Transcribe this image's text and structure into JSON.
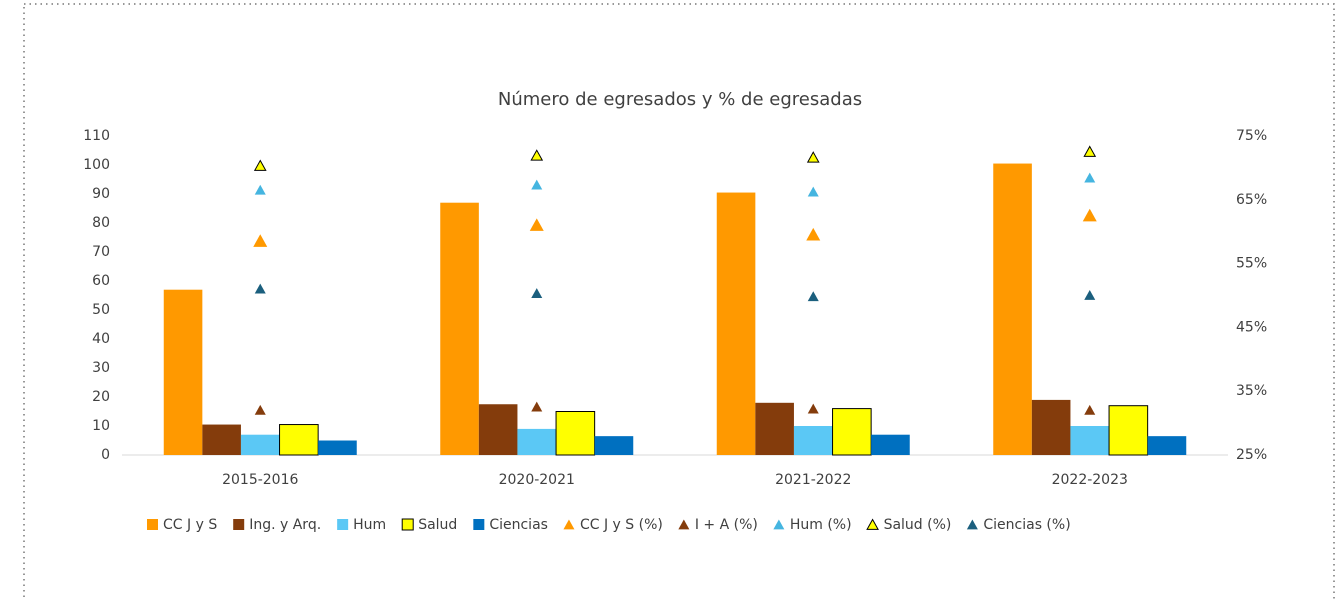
{
  "chart_data": {
    "type": "bar",
    "title": "Número de egresados y % de egresadas",
    "categories": [
      "2015-2016",
      "2020-2021",
      "2021-2022",
      "2022-2023"
    ],
    "ylim": [
      0,
      110
    ],
    "yticks": [
      0,
      10,
      20,
      30,
      40,
      50,
      60,
      70,
      80,
      90,
      100,
      110
    ],
    "y2lim": [
      25,
      75
    ],
    "y2ticks": [
      {
        "value": 25,
        "label": "25%"
      },
      {
        "value": 35,
        "label": "35%"
      },
      {
        "value": 45,
        "label": "45%"
      },
      {
        "value": 55,
        "label": "55%"
      },
      {
        "value": 65,
        "label": "65%"
      },
      {
        "value": 75,
        "label": "75%"
      }
    ],
    "series": [
      {
        "name": "CC J y S",
        "type": "bar",
        "color": "#ff9900",
        "values": [
          57,
          87,
          90.5,
          100.5
        ]
      },
      {
        "name": "Ing. y Arq.",
        "type": "bar",
        "color": "#843c0c",
        "values": [
          10.5,
          17.5,
          18,
          19
        ]
      },
      {
        "name": "Hum",
        "type": "bar",
        "color": "#5bc8f5",
        "values": [
          7,
          9,
          10,
          10
        ]
      },
      {
        "name": "Salud",
        "type": "bar",
        "color": "#ffff00",
        "outline": "#000000",
        "values": [
          10.5,
          15,
          16,
          17
        ]
      },
      {
        "name": "Ciencias",
        "type": "bar",
        "color": "#0070c0",
        "values": [
          5,
          6.5,
          7,
          6.5
        ]
      },
      {
        "name": "CC J y S (%)",
        "type": "scatter",
        "axis": "y2",
        "color": "#ff9900",
        "values": [
          58.5,
          61,
          59.5,
          62.5
        ]
      },
      {
        "name": "I + A (%)",
        "type": "scatter",
        "axis": "y2",
        "color": "#843c0c",
        "values": [
          32,
          32.5,
          32.2,
          32
        ]
      },
      {
        "name": "Hum (%)",
        "type": "scatter",
        "axis": "y2",
        "color": "#45b5e0",
        "values": [
          66.5,
          67.3,
          66.2,
          68.4
        ]
      },
      {
        "name": "Salud (%)",
        "type": "scatter",
        "axis": "y2",
        "color": "#ffff00",
        "outline": "#000000",
        "values": [
          70.3,
          71.9,
          71.6,
          72.5
        ]
      },
      {
        "name": "Ciencias (%)",
        "type": "scatter",
        "axis": "y2",
        "color": "#1b5f7e",
        "values": [
          51,
          50.3,
          49.8,
          50
        ]
      }
    ]
  }
}
